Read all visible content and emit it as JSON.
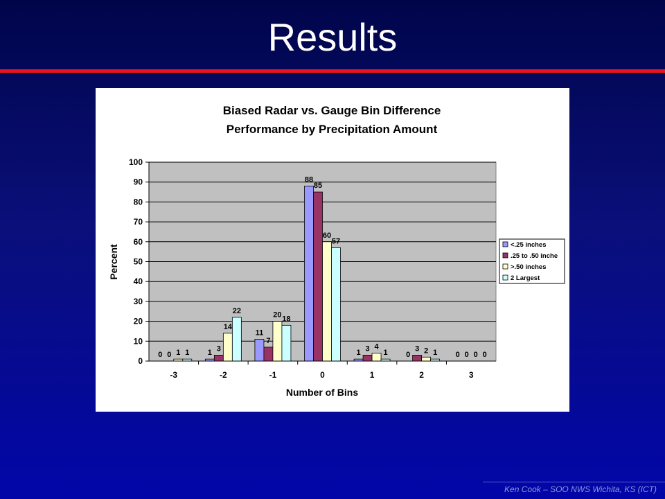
{
  "slide": {
    "title": "Results",
    "footer": "Ken Cook – SOO NWS Wichita, KS (ICT)"
  },
  "colors": {
    "title_rule": "#e8141c",
    "plot_area": "#c0c0c0",
    "series": [
      "#9999ff",
      "#993366",
      "#ffffcc",
      "#ccffff"
    ]
  },
  "chart_data": {
    "type": "bar",
    "title": [
      "Biased Radar vs. Gauge Bin Difference",
      "Performance by Precipitation Amount"
    ],
    "xlabel": "Number of Bins",
    "ylabel": "Percent",
    "categories": [
      "-3",
      "-2",
      "-1",
      "0",
      "1",
      "2",
      "3"
    ],
    "ylim": [
      0,
      100
    ],
    "yticks": [
      0,
      10,
      20,
      30,
      40,
      50,
      60,
      70,
      80,
      90,
      100
    ],
    "grid": true,
    "legend": "right",
    "series": [
      {
        "name": "<.25 inches",
        "values": [
          0,
          1,
          11,
          88,
          1,
          0,
          0
        ]
      },
      {
        "name": ".25 to .50 inche",
        "values": [
          0,
          3,
          7,
          85,
          3,
          3,
          0
        ]
      },
      {
        "name": ">.50 inches",
        "values": [
          1,
          14,
          20,
          60,
          4,
          2,
          0
        ]
      },
      {
        "name": "2 Largest",
        "values": [
          1,
          22,
          18,
          57,
          1,
          1,
          0
        ]
      }
    ]
  }
}
